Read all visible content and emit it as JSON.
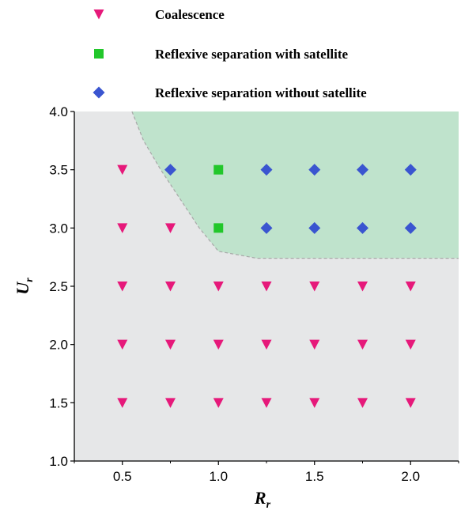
{
  "chart_data": {
    "type": "scatter",
    "title": "",
    "xlabel": {
      "main": "R",
      "sub": "r"
    },
    "ylabel": {
      "main": "U",
      "sub": "r"
    },
    "xlim": [
      0.25,
      2.25
    ],
    "ylim": [
      1.0,
      4.0
    ],
    "xticks": [
      "0.5",
      "1.0",
      "1.5",
      "2.0"
    ],
    "xtick_values": [
      0.5,
      1.0,
      1.5,
      2.0
    ],
    "yticks": [
      "1.0",
      "1.5",
      "2.0",
      "2.5",
      "3.0",
      "3.5",
      "4.0"
    ],
    "ytick_values": [
      1.0,
      1.5,
      2.0,
      2.5,
      3.0,
      3.5,
      4.0
    ],
    "grid": false,
    "legend_position": "top",
    "background_color": "#e6e7e8",
    "region": {
      "color": "#bfe3cc",
      "boundary_color": "#a8a8a8",
      "boundary": [
        [
          0.55,
          4.0
        ],
        [
          0.61,
          3.75
        ],
        [
          0.7,
          3.5
        ],
        [
          0.8,
          3.25
        ],
        [
          0.9,
          3.0
        ],
        [
          1.0,
          2.8
        ],
        [
          1.2,
          2.74
        ],
        [
          2.25,
          2.74
        ]
      ]
    },
    "series": [
      {
        "name": "Coalescence",
        "marker": "triangle-down",
        "color": "#e6197a",
        "points": [
          [
            0.5,
            3.5
          ],
          [
            0.5,
            3.0
          ],
          [
            0.75,
            3.0
          ],
          [
            0.5,
            2.5
          ],
          [
            0.75,
            2.5
          ],
          [
            1.0,
            2.5
          ],
          [
            1.25,
            2.5
          ],
          [
            1.5,
            2.5
          ],
          [
            1.75,
            2.5
          ],
          [
            2.0,
            2.5
          ],
          [
            0.5,
            2.0
          ],
          [
            0.75,
            2.0
          ],
          [
            1.0,
            2.0
          ],
          [
            1.25,
            2.0
          ],
          [
            1.5,
            2.0
          ],
          [
            1.75,
            2.0
          ],
          [
            2.0,
            2.0
          ],
          [
            0.5,
            1.5
          ],
          [
            0.75,
            1.5
          ],
          [
            1.0,
            1.5
          ],
          [
            1.25,
            1.5
          ],
          [
            1.5,
            1.5
          ],
          [
            1.75,
            1.5
          ],
          [
            2.0,
            1.5
          ]
        ]
      },
      {
        "name": "Reflexive separation with satellite",
        "marker": "square",
        "color": "#22c72b",
        "points": [
          [
            1.0,
            3.5
          ],
          [
            1.0,
            3.0
          ]
        ]
      },
      {
        "name": "Reflexive separation without satellite",
        "marker": "diamond",
        "color": "#3a55d0",
        "points": [
          [
            0.75,
            3.5
          ],
          [
            1.25,
            3.5
          ],
          [
            1.5,
            3.5
          ],
          [
            1.75,
            3.5
          ],
          [
            2.0,
            3.5
          ],
          [
            1.25,
            3.0
          ],
          [
            1.5,
            3.0
          ],
          [
            1.75,
            3.0
          ],
          [
            2.0,
            3.0
          ]
        ]
      }
    ]
  }
}
